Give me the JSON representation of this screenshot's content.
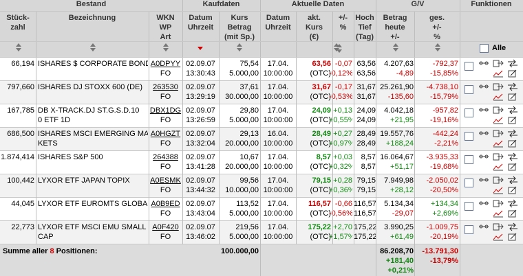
{
  "headers": {
    "bestand": "Bestand",
    "kaufdaten": "Kaufdaten",
    "aktuelle": "Aktuelle Daten",
    "gv": "G/V",
    "funktionen": "Funktionen",
    "stueck": "Stück-\nzahl",
    "bezeichnung": "Bezeichnung",
    "wkn": "WKN\nWP\nArt",
    "datum_kauf": "Datum\nUhrzeit",
    "kurs_betrag": "Kurs\nBetrag\n(mit Sp.)",
    "datum_akt": "Datum\nUhrzeit",
    "akt_kurs": "akt.\nKurs\n(€)",
    "plusminus_pct": "+/-\n%",
    "hoch_tief": "Hoch\nTief\n(Tag)",
    "betrag_heute": "Betrag\nheute\n+/-",
    "ges": "ges.\n+/-\n%",
    "alle": "Alle"
  },
  "rows": [
    {
      "stueck": "66,194",
      "name1": "ISHARES $ CORPORATE BOND",
      "name2": "",
      "wkn": "A0DPYY",
      "art": "FO",
      "kdate": "02.09.07",
      "ktime": "13:30:43",
      "kkurs": "75,54",
      "kbetrag": "5.000,00",
      "adate": "17.04.",
      "atime": "10:00:00",
      "akurs": "63,56",
      "akurs_col": "neg",
      "aplace": "(OTC)",
      "d1": "-0,07",
      "d2": "-0,12%",
      "dcol": "neg",
      "hoch": "63,56",
      "tief": "63,56",
      "betrag": "4.207,63",
      "bdiff": "-4,89",
      "bcol": "neg",
      "g1": "-792,37",
      "g2": "-15,85%",
      "gcol": "neg"
    },
    {
      "stueck": "797,660",
      "name1": "ISHARES DJ STOXX 600 (DE)",
      "name2": "",
      "wkn": "263530",
      "art": "FO",
      "kdate": "02.09.07",
      "ktime": "13:29:19",
      "kkurs": "37,61",
      "kbetrag": "30.000,00",
      "adate": "17.04.",
      "atime": "10:00:00",
      "akurs": "31,67",
      "akurs_col": "neg",
      "aplace": "(OTC)",
      "d1": "-0,17",
      "d2": "-0,53%",
      "dcol": "neg",
      "hoch": "31,67",
      "tief": "31,67",
      "betrag": "25.261,90",
      "bdiff": "-135,60",
      "bcol": "neg",
      "g1": "-4.738,10",
      "g2": "-15,79%",
      "gcol": "neg"
    },
    {
      "stueck": "167,785",
      "name1": "DB X-TRACK.DJ ST.G.S.D.10",
      "name2": "0 ETF 1D",
      "wkn": "DBX1DG",
      "art": "FO",
      "kdate": "02.09.07",
      "ktime": "13:26:59",
      "kkurs": "29,80",
      "kbetrag": "5.000,00",
      "adate": "17.04.",
      "atime": "10:00:00",
      "akurs": "24,09",
      "akurs_col": "pos",
      "aplace": "(OTC)",
      "d1": "+0,13",
      "d2": "+0,55%",
      "dcol": "pos",
      "hoch": "24,09",
      "tief": "24,09",
      "betrag": "4.042,18",
      "bdiff": "+21,95",
      "bcol": "pos",
      "g1": "-957,82",
      "g2": "-19,16%",
      "gcol": "neg"
    },
    {
      "stueck": "686,500",
      "name1": "ISHARES MSCI EMERGING MAR",
      "name2": "KETS",
      "wkn": "A0HGZT",
      "art": "FO",
      "kdate": "02.09.07",
      "ktime": "13:32:04",
      "kkurs": "29,13",
      "kbetrag": "20.000,00",
      "adate": "16.04.",
      "atime": "10:00:00",
      "akurs": "28,49",
      "akurs_col": "pos",
      "aplace": "(OTC)",
      "d1": "+0,27",
      "d2": "+0,97%",
      "dcol": "pos",
      "hoch": "28,49",
      "tief": "28,49",
      "betrag": "19.557,76",
      "bdiff": "+188,24",
      "bcol": "pos",
      "g1": "-442,24",
      "g2": "-2,21%",
      "gcol": "neg"
    },
    {
      "stueck": "1.874,414",
      "name1": "ISHARES S&P 500",
      "name2": "",
      "wkn": "264388",
      "art": "FO",
      "kdate": "02.09.07",
      "ktime": "13:41:28",
      "kkurs": "10,67",
      "kbetrag": "20.000,00",
      "adate": "17.04.",
      "atime": "10:00:00",
      "akurs": "8,57",
      "akurs_col": "pos",
      "aplace": "(OTC)",
      "d1": "+0,03",
      "d2": "+0,32%",
      "dcol": "pos",
      "hoch": "8,57",
      "tief": "8,57",
      "betrag": "16.064,67",
      "bdiff": "+51,17",
      "bcol": "pos",
      "g1": "-3.935,33",
      "g2": "-19,68%",
      "gcol": "neg"
    },
    {
      "stueck": "100,442",
      "name1": "LYXOR ETF JAPAN TOPIX",
      "name2": "",
      "wkn": "A0ESMK",
      "art": "FO",
      "kdate": "02.09.07",
      "ktime": "13:44:32",
      "kkurs": "99,56",
      "kbetrag": "10.000,00",
      "adate": "17.04.",
      "atime": "10:00:00",
      "akurs": "79,15",
      "akurs_col": "pos",
      "aplace": "(OTC)",
      "d1": "+0,28",
      "d2": "+0,36%",
      "dcol": "pos",
      "hoch": "79,15",
      "tief": "79,15",
      "betrag": "7.949,98",
      "bdiff": "+28,12",
      "bcol": "pos",
      "g1": "-2.050,02",
      "g2": "-20,50%",
      "gcol": "neg"
    },
    {
      "stueck": "44,045",
      "name1": "LYXOR ETF EUROMTS GLOBAL",
      "name2": "",
      "wkn": "A0B9ED",
      "art": "FO",
      "kdate": "02.09.07",
      "ktime": "13:43:04",
      "kkurs": "113,52",
      "kbetrag": "5.000,00",
      "adate": "17.04.",
      "atime": "10:00:00",
      "akurs": "116,57",
      "akurs_col": "neg",
      "aplace": "(OTC)",
      "d1": "-0,66",
      "d2": "-0,56%",
      "dcol": "neg",
      "hoch": "116,57",
      "tief": "116,57",
      "betrag": "5.134,34",
      "bdiff": "-29,07",
      "bcol": "neg",
      "g1": "+134,34",
      "g2": "+2,69%",
      "gcol": "pos"
    },
    {
      "stueck": "22,773",
      "name1": "LYXOR ETF MSCI EMU SMALL",
      "name2": "CAP",
      "wkn": "A0F420",
      "art": "FO",
      "kdate": "02.09.07",
      "ktime": "13:46:02",
      "kkurs": "219,56",
      "kbetrag": "5.000,00",
      "adate": "17.04.",
      "atime": "10:00:00",
      "akurs": "175,22",
      "akurs_col": "pos",
      "aplace": "(OTC)",
      "d1": "+2,70",
      "d2": "+1,57%",
      "dcol": "pos",
      "hoch": "175,22",
      "tief": "175,22",
      "betrag": "3.990,25",
      "bdiff": "+61,49",
      "bcol": "pos",
      "g1": "-1.009,75",
      "g2": "-20,19%",
      "gcol": "neg"
    }
  ],
  "summary": {
    "label_pre": "Summe aller",
    "count": "8",
    "label_post": "Positionen:",
    "kauf_total": "100.000,00",
    "betrag_total": "86.208,70",
    "betrag_diff": "+181,40",
    "betrag_pct": "+0,21%",
    "gv_total": "-13.791,30",
    "gv_pct": "-13,79%"
  },
  "colors": {
    "neg": "#cc0000",
    "pos": "#118811",
    "header": "#d7d7d7"
  }
}
